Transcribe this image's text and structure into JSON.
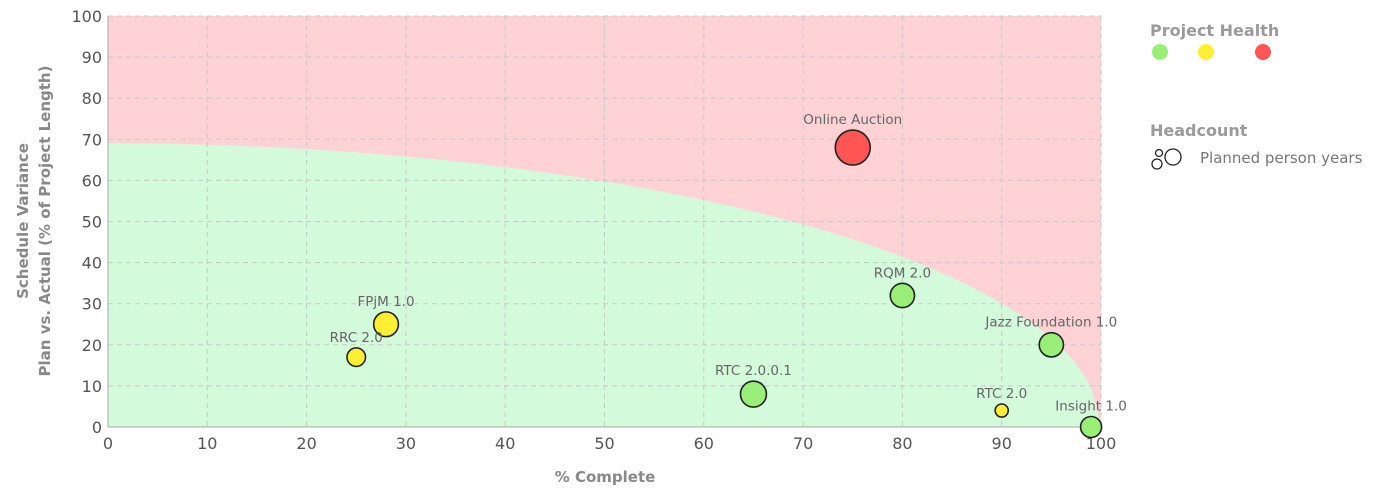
{
  "chart_data": {
    "type": "bubble",
    "xlabel": "% Complete",
    "ylabel_line1": "Schedule Variance",
    "ylabel_line2": "Plan vs. Actual (% of Project Length)",
    "xlim": [
      0,
      100
    ],
    "ylim": [
      0,
      100
    ],
    "xticks": [
      0,
      10,
      20,
      30,
      40,
      50,
      60,
      70,
      80,
      90,
      100
    ],
    "yticks": [
      0,
      10,
      20,
      30,
      40,
      50,
      60,
      70,
      80,
      90,
      100
    ],
    "grid": true,
    "zones": [
      {
        "name": "at-risk",
        "color": "#ffd2d6"
      },
      {
        "name": "healthy",
        "color": "#d4fadc",
        "boundary_intercept": 69
      }
    ],
    "health_colors": {
      "green": "#99ee77",
      "yellow": "#ffee33",
      "red": "#ff5555"
    },
    "points": [
      {
        "label": "Online Auction",
        "x": 75,
        "y": 68,
        "size": 10,
        "health": "red"
      },
      {
        "label": "RQM 2.0",
        "x": 80,
        "y": 32,
        "size": 4.8,
        "health": "green"
      },
      {
        "label": "Jazz Foundation 1.0",
        "x": 95,
        "y": 20,
        "size": 4.8,
        "health": "green"
      },
      {
        "label": "FPjM 1.0",
        "x": 28,
        "y": 25,
        "size": 5,
        "health": "yellow"
      },
      {
        "label": "RRC 2.0",
        "x": 25,
        "y": 17,
        "size": 2.8,
        "health": "yellow"
      },
      {
        "label": "RTC 2.0.0.1",
        "x": 65,
        "y": 8,
        "size": 5.5,
        "health": "green"
      },
      {
        "label": "RTC 2.0",
        "x": 90,
        "y": 4,
        "size": 1.4,
        "health": "yellow"
      },
      {
        "label": "Insight 1.0",
        "x": 99,
        "y": 0,
        "size": 3.6,
        "health": "green"
      }
    ]
  },
  "legend": {
    "health_title": "Project Health",
    "health_swatches": [
      "#99ee77",
      "#ffee33",
      "#ff5555"
    ],
    "headcount_title": "Headcount",
    "headcount_text": "Planned person years"
  }
}
